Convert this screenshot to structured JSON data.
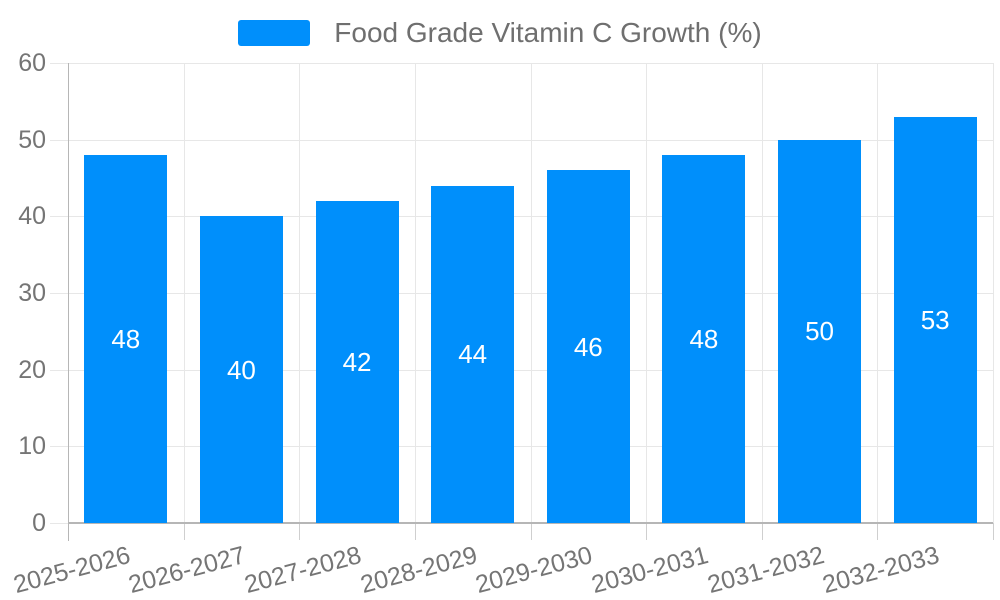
{
  "legend": {
    "items": [
      {
        "label": "Food Grade Vitamin C Growth (%)",
        "color": "#008FFB"
      }
    ]
  },
  "chart_data": {
    "type": "bar",
    "title": "Food Grade Vitamin C Growth (%)",
    "categories": [
      "2025-2026",
      "2026-2027",
      "2027-2028",
      "2028-2029",
      "2029-2030",
      "2030-2031",
      "2031-2032",
      "2032-2033"
    ],
    "series": [
      {
        "name": "Food Grade Vitamin C Growth (%)",
        "values": [
          48,
          40,
          42,
          44,
          46,
          48,
          50,
          53
        ]
      }
    ],
    "xlabel": "",
    "ylabel": "",
    "ylim": [
      0,
      60
    ],
    "yticks": [
      0,
      10,
      20,
      30,
      40,
      50,
      60
    ],
    "grid": true,
    "legend_position": "top",
    "x_label_rotation_deg": -15,
    "colors": {
      "bar": "#008FFB",
      "grid": "#e7e7e7",
      "axis": "#b6b6b6",
      "tick": "#cfcfcf",
      "tick_label": "#757575",
      "legend_text": "#6f6f6f",
      "data_label": "#ffffff",
      "background": "#ffffff"
    }
  }
}
